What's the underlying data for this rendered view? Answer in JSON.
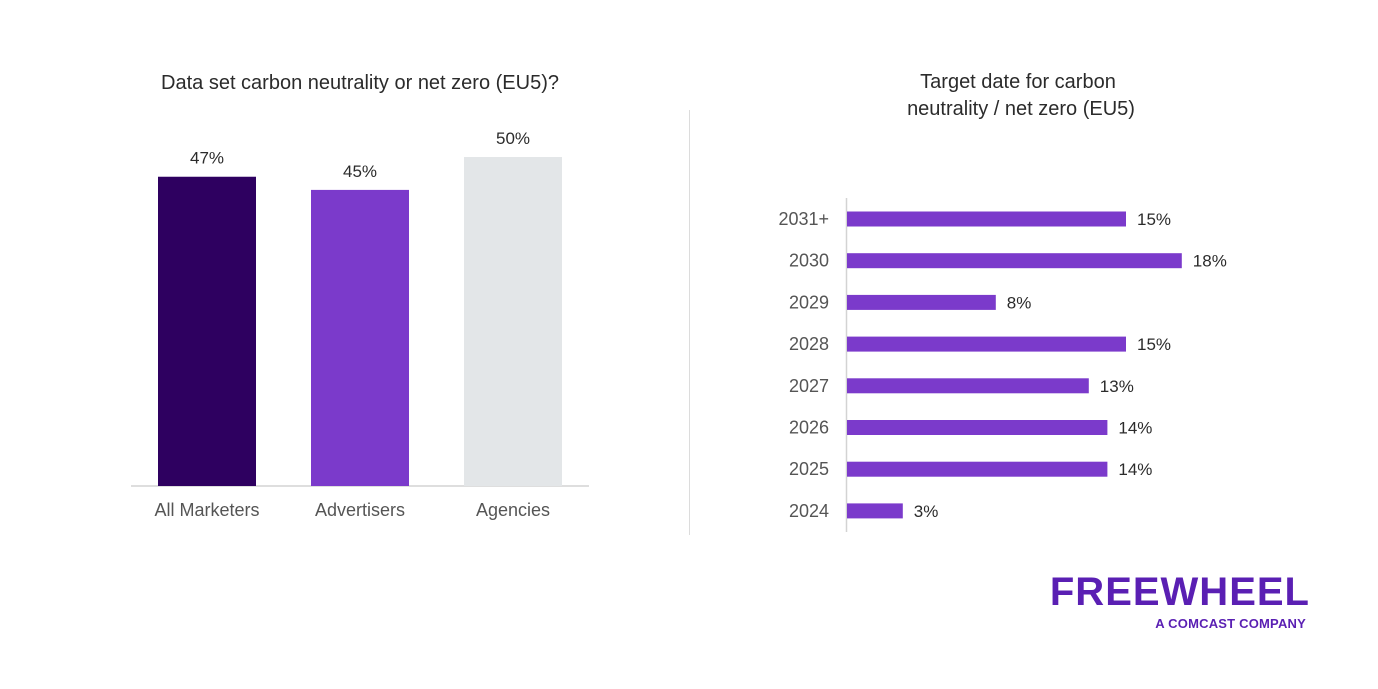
{
  "chart_data": [
    {
      "type": "bar",
      "title": "Data set carbon neutrality or net zero (EU5)?",
      "categories": [
        "All Marketers",
        "Advertisers",
        "Agencies"
      ],
      "values": [
        47,
        45,
        50
      ],
      "value_labels": [
        "47%",
        "45%",
        "50%"
      ],
      "colors": [
        "#2e0060",
        "#7b3acb",
        "#e3e6e8"
      ],
      "unit": "%",
      "grid": false
    },
    {
      "type": "bar",
      "orientation": "horizontal",
      "title_lines": [
        "Target date for carbon",
        "neutrality / net zero (EU5)"
      ],
      "categories": [
        "2031+",
        "2030",
        "2029",
        "2028",
        "2027",
        "2026",
        "2025",
        "2024"
      ],
      "values": [
        15,
        18,
        8,
        15,
        13,
        14,
        14,
        3
      ],
      "value_labels": [
        "15%",
        "18%",
        "8%",
        "15%",
        "13%",
        "14%",
        "14%",
        "3%"
      ],
      "color": "#7b3acb",
      "unit": "%",
      "grid": false
    }
  ],
  "logo": {
    "wordmark": "FREEWHEEL",
    "tagline": "A COMCAST COMPANY",
    "color": "#5a1fb3"
  }
}
